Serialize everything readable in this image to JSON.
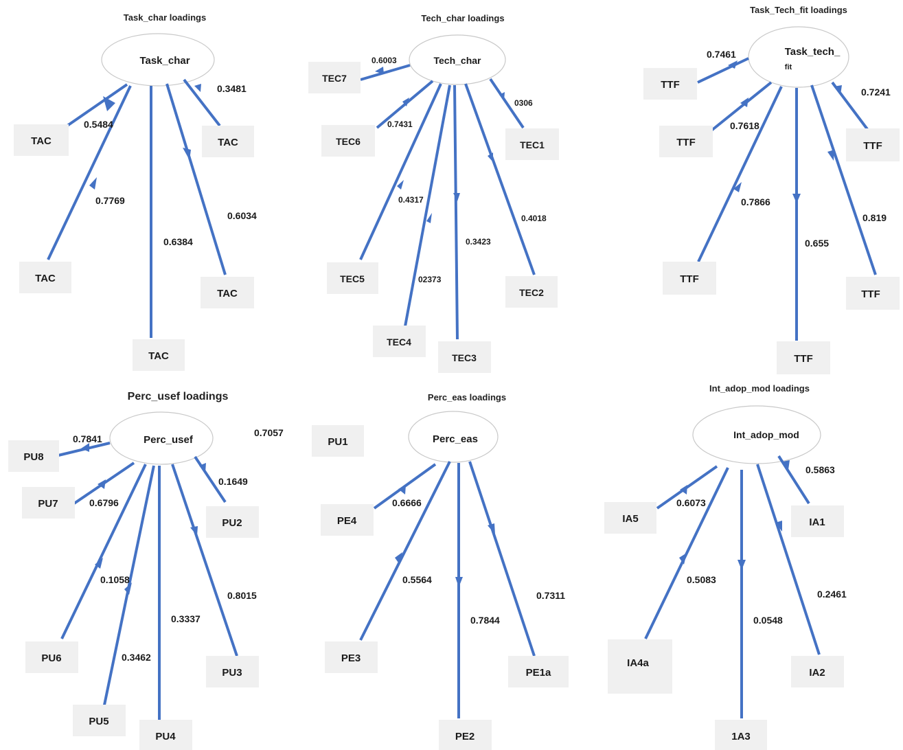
{
  "panels": {
    "task_char": {
      "title": "Task_char loadings",
      "construct": "Task_char",
      "indicators": [
        "TAC",
        "TAC",
        "TAC",
        "TAC",
        "TAC"
      ],
      "loadings": [
        "0.5484",
        "0.7769",
        "0.6384",
        "0.6034",
        "0.3481"
      ]
    },
    "tech_char": {
      "title": "Tech_char loadings",
      "construct": "Tech_char",
      "indicators": [
        "TEC7",
        "TEC6",
        "TEC5",
        "TEC4",
        "TEC3",
        "TEC2",
        "TEC1"
      ],
      "loadings": [
        "0.6003",
        "0.7431",
        "0.4317",
        "02373",
        "0.3423",
        "0.4018",
        "0306"
      ]
    },
    "task_tech_fit": {
      "title": "Task_Tech_fit loadings",
      "construct_line1": "Task_tech_",
      "construct_line2": "fit",
      "indicators": [
        "TTF",
        "TTF",
        "TTF",
        "TTF",
        "TTF",
        "TTF"
      ],
      "loadings": [
        "0.7461",
        "0.7618",
        "0.7866",
        "0.655",
        "0.819",
        "0.7241"
      ]
    },
    "perc_usef": {
      "title": "Perc_usef loadings",
      "construct": "Perc_usef",
      "indicators": [
        "PU8",
        "PU7",
        "PU6",
        "PU5",
        "PU4",
        "PU3",
        "PU2"
      ],
      "loadings": [
        "0.7841",
        "0.6796",
        "0.1058",
        "0.3462",
        "0.3337",
        "0.8015",
        "0.1649"
      ],
      "extra_value": "0.7057"
    },
    "perc_eas": {
      "title": "Perc_eas loadings",
      "construct": "Perc_eas",
      "indicators": [
        "PU1",
        "PE4",
        "PE3",
        "PE2",
        "PE1a"
      ],
      "loadings": [
        "0.6666",
        "0.5564",
        "0.7844",
        "0.7311"
      ]
    },
    "int_adop_mod": {
      "title": "Int_adop_mod loadings",
      "construct": "Int_adop_mod",
      "indicators": [
        "IA5",
        "IA4a",
        "1A3",
        "IA2",
        "IA1"
      ],
      "loadings": [
        "0.6073",
        "0.5083",
        "0.0548",
        "0.2461",
        "0.5863"
      ]
    }
  },
  "colors": {
    "edge": "#4472c4",
    "box": "#f0f0f0",
    "ellipse_stroke": "#c8c8c8"
  }
}
